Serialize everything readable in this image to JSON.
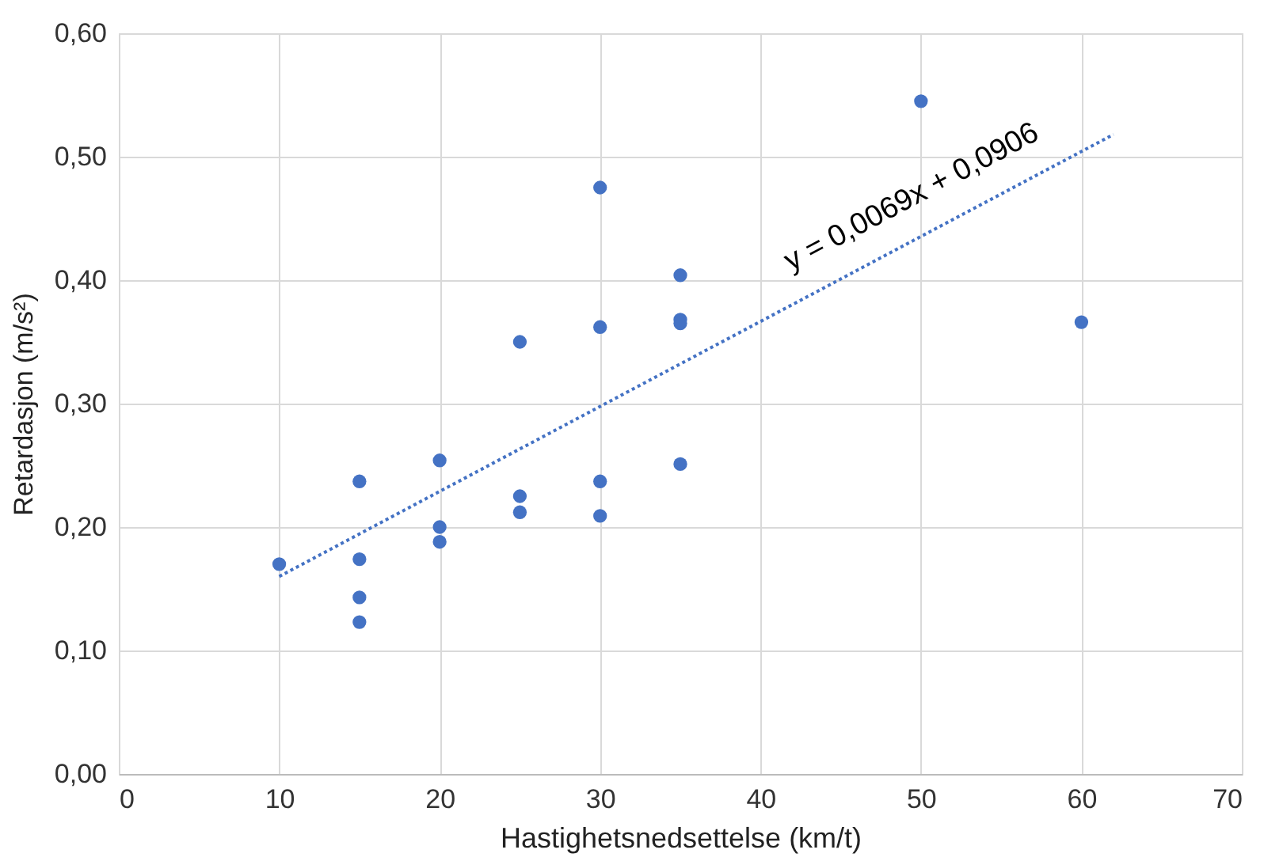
{
  "chart_data": {
    "type": "scatter",
    "xlabel": "Hastighetsnedsettelse (km/t)",
    "ylabel": "Retardasjon (m/s²)",
    "xlim": [
      0,
      70
    ],
    "xticks": [
      0,
      10,
      20,
      30,
      40,
      50,
      60,
      70
    ],
    "ylim": [
      0,
      0.6
    ],
    "yticks": [
      {
        "value": 0,
        "label": "0,00"
      },
      {
        "value": 0.1,
        "label": "0,10"
      },
      {
        "value": 0.2,
        "label": "0,20"
      },
      {
        "value": 0.3,
        "label": "0,30"
      },
      {
        "value": 0.4,
        "label": "0,40"
      },
      {
        "value": 0.5,
        "label": "0,50"
      },
      {
        "value": 0.6,
        "label": "0,60"
      }
    ],
    "grid": true,
    "series": [
      {
        "marker": "circle",
        "color": "#4472c4",
        "x": [
          10,
          15,
          15,
          15,
          15,
          20,
          20,
          20,
          25,
          25,
          25,
          30,
          30,
          30,
          30,
          35,
          35,
          35,
          35,
          50,
          60
        ],
        "values": [
          0.17,
          0.237,
          0.174,
          0.143,
          0.123,
          0.254,
          0.2,
          0.188,
          0.35,
          0.225,
          0.212,
          0.475,
          0.362,
          0.237,
          0.209,
          0.404,
          0.368,
          0.365,
          0.251,
          0.545,
          0.366
        ]
      },
      {
        "type": "line",
        "line_style": "dotted",
        "color": "#4472c4",
        "x": [
          10,
          62
        ],
        "values": [
          0.16,
          0.518
        ]
      }
    ],
    "annotations": [
      "y = 0,0069x + 0,0906"
    ]
  }
}
